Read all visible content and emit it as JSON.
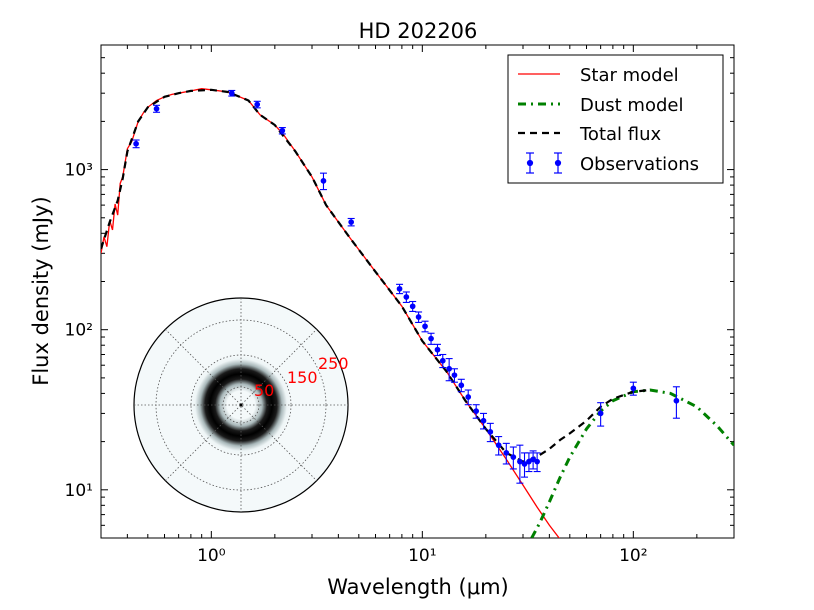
{
  "chart_data": {
    "type": "line",
    "title": "HD 202206",
    "xlabel": "Wavelength (μm)",
    "ylabel": "Flux density (mJy)",
    "xscale": "log",
    "yscale": "log",
    "xlim": [
      0.3,
      300
    ],
    "ylim": [
      5,
      6000
    ],
    "x_ticks": [
      {
        "value": 1,
        "label": "10⁰"
      },
      {
        "value": 10,
        "label": "10¹"
      },
      {
        "value": 100,
        "label": "10²"
      }
    ],
    "y_ticks": [
      {
        "value": 10,
        "label": "10¹"
      },
      {
        "value": 100,
        "label": "10²"
      },
      {
        "value": 1000,
        "label": "10³"
      }
    ],
    "legend_position": "top-right",
    "series": [
      {
        "name": "Star model",
        "color": "#ff0000",
        "style": "solid",
        "x": [
          0.3,
          0.31,
          0.32,
          0.33,
          0.34,
          0.35,
          0.36,
          0.37,
          0.38,
          0.4,
          0.42,
          0.45,
          0.48,
          0.5,
          0.55,
          0.6,
          0.65,
          0.7,
          0.8,
          0.9,
          1.0,
          1.2,
          1.5,
          1.7,
          2.0,
          2.2,
          2.5,
          3.0,
          3.5,
          4.5,
          6.0,
          8.0,
          10.0,
          13.0,
          16.0,
          20.0,
          25.0,
          30.0,
          35.0,
          40.0,
          45.0
        ],
        "y": [
          300,
          380,
          330,
          480,
          420,
          610,
          520,
          820,
          900,
          1350,
          1500,
          2000,
          2300,
          2450,
          2700,
          2850,
          2950,
          3000,
          3100,
          3200,
          3150,
          3050,
          2700,
          2200,
          1900,
          1650,
          1300,
          900,
          600,
          380,
          230,
          140,
          85,
          55,
          36,
          24,
          15.5,
          10.7,
          7.8,
          6.0,
          4.9
        ]
      },
      {
        "name": "Dust model",
        "color": "#008000",
        "style": "dash-dot",
        "x": [
          33,
          36,
          40,
          45,
          50,
          60,
          70,
          80,
          100,
          120,
          150,
          200,
          250,
          300
        ],
        "y": [
          5.0,
          6.2,
          8.4,
          12,
          16,
          24,
          31,
          36,
          41,
          42,
          40,
          33,
          25,
          19
        ]
      },
      {
        "name": "Total flux",
        "color": "#000000",
        "style": "dashed",
        "x": [
          0.3,
          0.33,
          0.36,
          0.38,
          0.4,
          0.45,
          0.5,
          0.6,
          0.7,
          0.8,
          1.0,
          1.2,
          1.5,
          1.7,
          2.0,
          2.5,
          3.0,
          3.5,
          4.5,
          6.0,
          8.0,
          10.0,
          13.0,
          16.0,
          20.0,
          25.0,
          30.0,
          33.0,
          36.0,
          40.0,
          45.0,
          50.0,
          60.0,
          70.0,
          80.0,
          100.0,
          120.0
        ],
        "y": [
          320,
          470,
          640,
          880,
          1300,
          2000,
          2450,
          2850,
          3000,
          3100,
          3150,
          3050,
          2700,
          2200,
          1900,
          1300,
          900,
          600,
          380,
          230,
          140,
          85,
          55,
          36,
          24,
          17,
          15,
          15.5,
          16.5,
          18,
          20.5,
          22.5,
          27,
          33,
          37,
          41,
          42
        ]
      },
      {
        "name": "Observations",
        "color": "#0000ff",
        "style": "errorbar",
        "points": [
          {
            "x": 0.44,
            "y": 1450,
            "err": 80
          },
          {
            "x": 0.55,
            "y": 2400,
            "err": 120
          },
          {
            "x": 1.25,
            "y": 3000,
            "err": 120
          },
          {
            "x": 1.65,
            "y": 2550,
            "err": 120
          },
          {
            "x": 2.17,
            "y": 1750,
            "err": 80
          },
          {
            "x": 3.4,
            "y": 850,
            "err": 100
          },
          {
            "x": 4.6,
            "y": 470,
            "err": 25
          },
          {
            "x": 7.8,
            "y": 180,
            "err": 12
          },
          {
            "x": 8.4,
            "y": 160,
            "err": 12
          },
          {
            "x": 9.0,
            "y": 140,
            "err": 10
          },
          {
            "x": 9.6,
            "y": 120,
            "err": 9
          },
          {
            "x": 10.3,
            "y": 105,
            "err": 8
          },
          {
            "x": 11.0,
            "y": 88,
            "err": 7
          },
          {
            "x": 11.8,
            "y": 75,
            "err": 6
          },
          {
            "x": 12.5,
            "y": 64,
            "err": 6
          },
          {
            "x": 13.4,
            "y": 57,
            "err": 9
          },
          {
            "x": 14.2,
            "y": 52,
            "err": 5
          },
          {
            "x": 15.3,
            "y": 45,
            "err": 4
          },
          {
            "x": 16.5,
            "y": 38,
            "err": 4
          },
          {
            "x": 18.0,
            "y": 31,
            "err": 3
          },
          {
            "x": 19.5,
            "y": 27,
            "err": 3
          },
          {
            "x": 21.0,
            "y": 23,
            "err": 3
          },
          {
            "x": 23.0,
            "y": 19,
            "err": 2.5
          },
          {
            "x": 25.0,
            "y": 17,
            "err": 2.5
          },
          {
            "x": 27.0,
            "y": 16,
            "err": 2.5
          },
          {
            "x": 29.0,
            "y": 15,
            "err": 4
          },
          {
            "x": 30.5,
            "y": 14.5,
            "err": 2.5
          },
          {
            "x": 32.0,
            "y": 15,
            "err": 2
          },
          {
            "x": 33.5,
            "y": 15.5,
            "err": 2
          },
          {
            "x": 35.0,
            "y": 15,
            "err": 2
          },
          {
            "x": 70,
            "y": 30,
            "err": 5
          },
          {
            "x": 100,
            "y": 43,
            "err": 4
          },
          {
            "x": 160,
            "y": 36,
            "err": 8
          }
        ]
      }
    ],
    "inset": {
      "type": "polar-image",
      "description_label": "ring disk image",
      "radial_tick_labels": [
        "50",
        "150",
        "250"
      ],
      "label_color": "#ff0000"
    }
  }
}
